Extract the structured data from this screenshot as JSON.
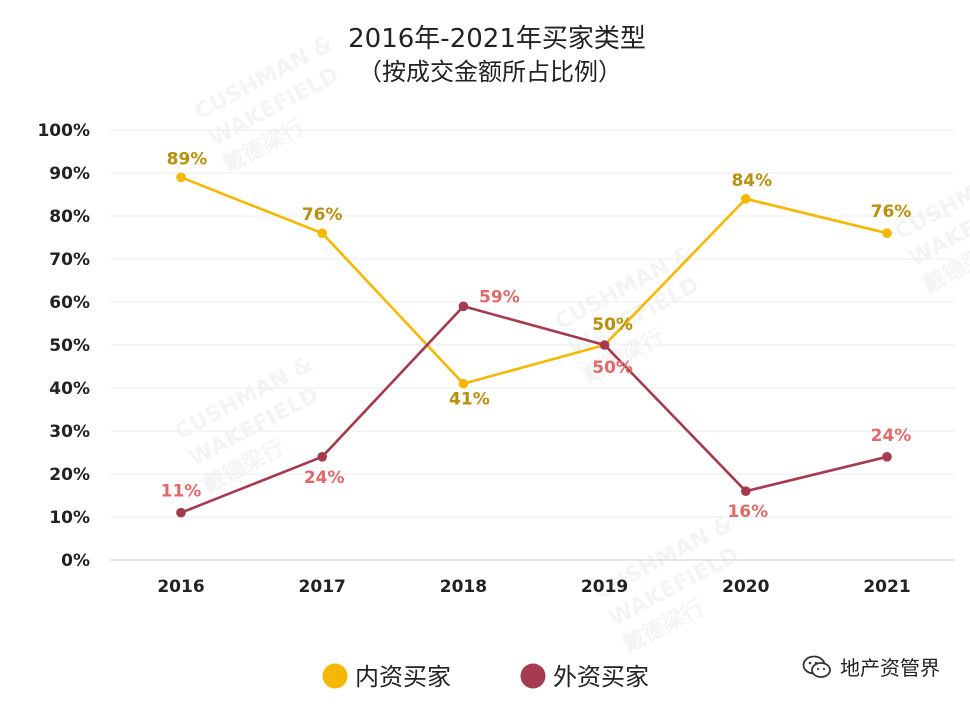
{
  "chart_data": {
    "type": "line",
    "title": "2016年-2021年买家类型",
    "subtitle": "（按成交金额所占比例）",
    "categories": [
      "2016",
      "2017",
      "2018",
      "2019",
      "2020",
      "2021"
    ],
    "ylim": [
      0,
      100
    ],
    "yticks": [
      "0%",
      "10%",
      "20%",
      "30%",
      "40%",
      "50%",
      "60%",
      "70%",
      "80%",
      "90%",
      "100%"
    ],
    "grid": true,
    "legend_position": "bottom-center",
    "series": [
      {
        "name": "内资买家",
        "values": [
          89,
          76,
          41,
          50,
          84,
          76
        ],
        "labels": [
          "89%",
          "76%",
          "41%",
          "50%",
          "84%",
          "76%"
        ],
        "color": "#f5b800",
        "label_color": "#b8900e"
      },
      {
        "name": "外资买家",
        "values": [
          11,
          24,
          59,
          50,
          16,
          24
        ],
        "labels": [
          "11%",
          "24%",
          "59%",
          "50%",
          "16%",
          "24%"
        ],
        "color": "#a63a4e",
        "label_color": "#e06a6a"
      }
    ]
  },
  "watermark": {
    "line1": "CUSHMAN &",
    "line2": "WAKEFIELD",
    "line3": "戴德梁行"
  },
  "brand": {
    "text": "地产资管界",
    "icon": "wechat-icon"
  }
}
